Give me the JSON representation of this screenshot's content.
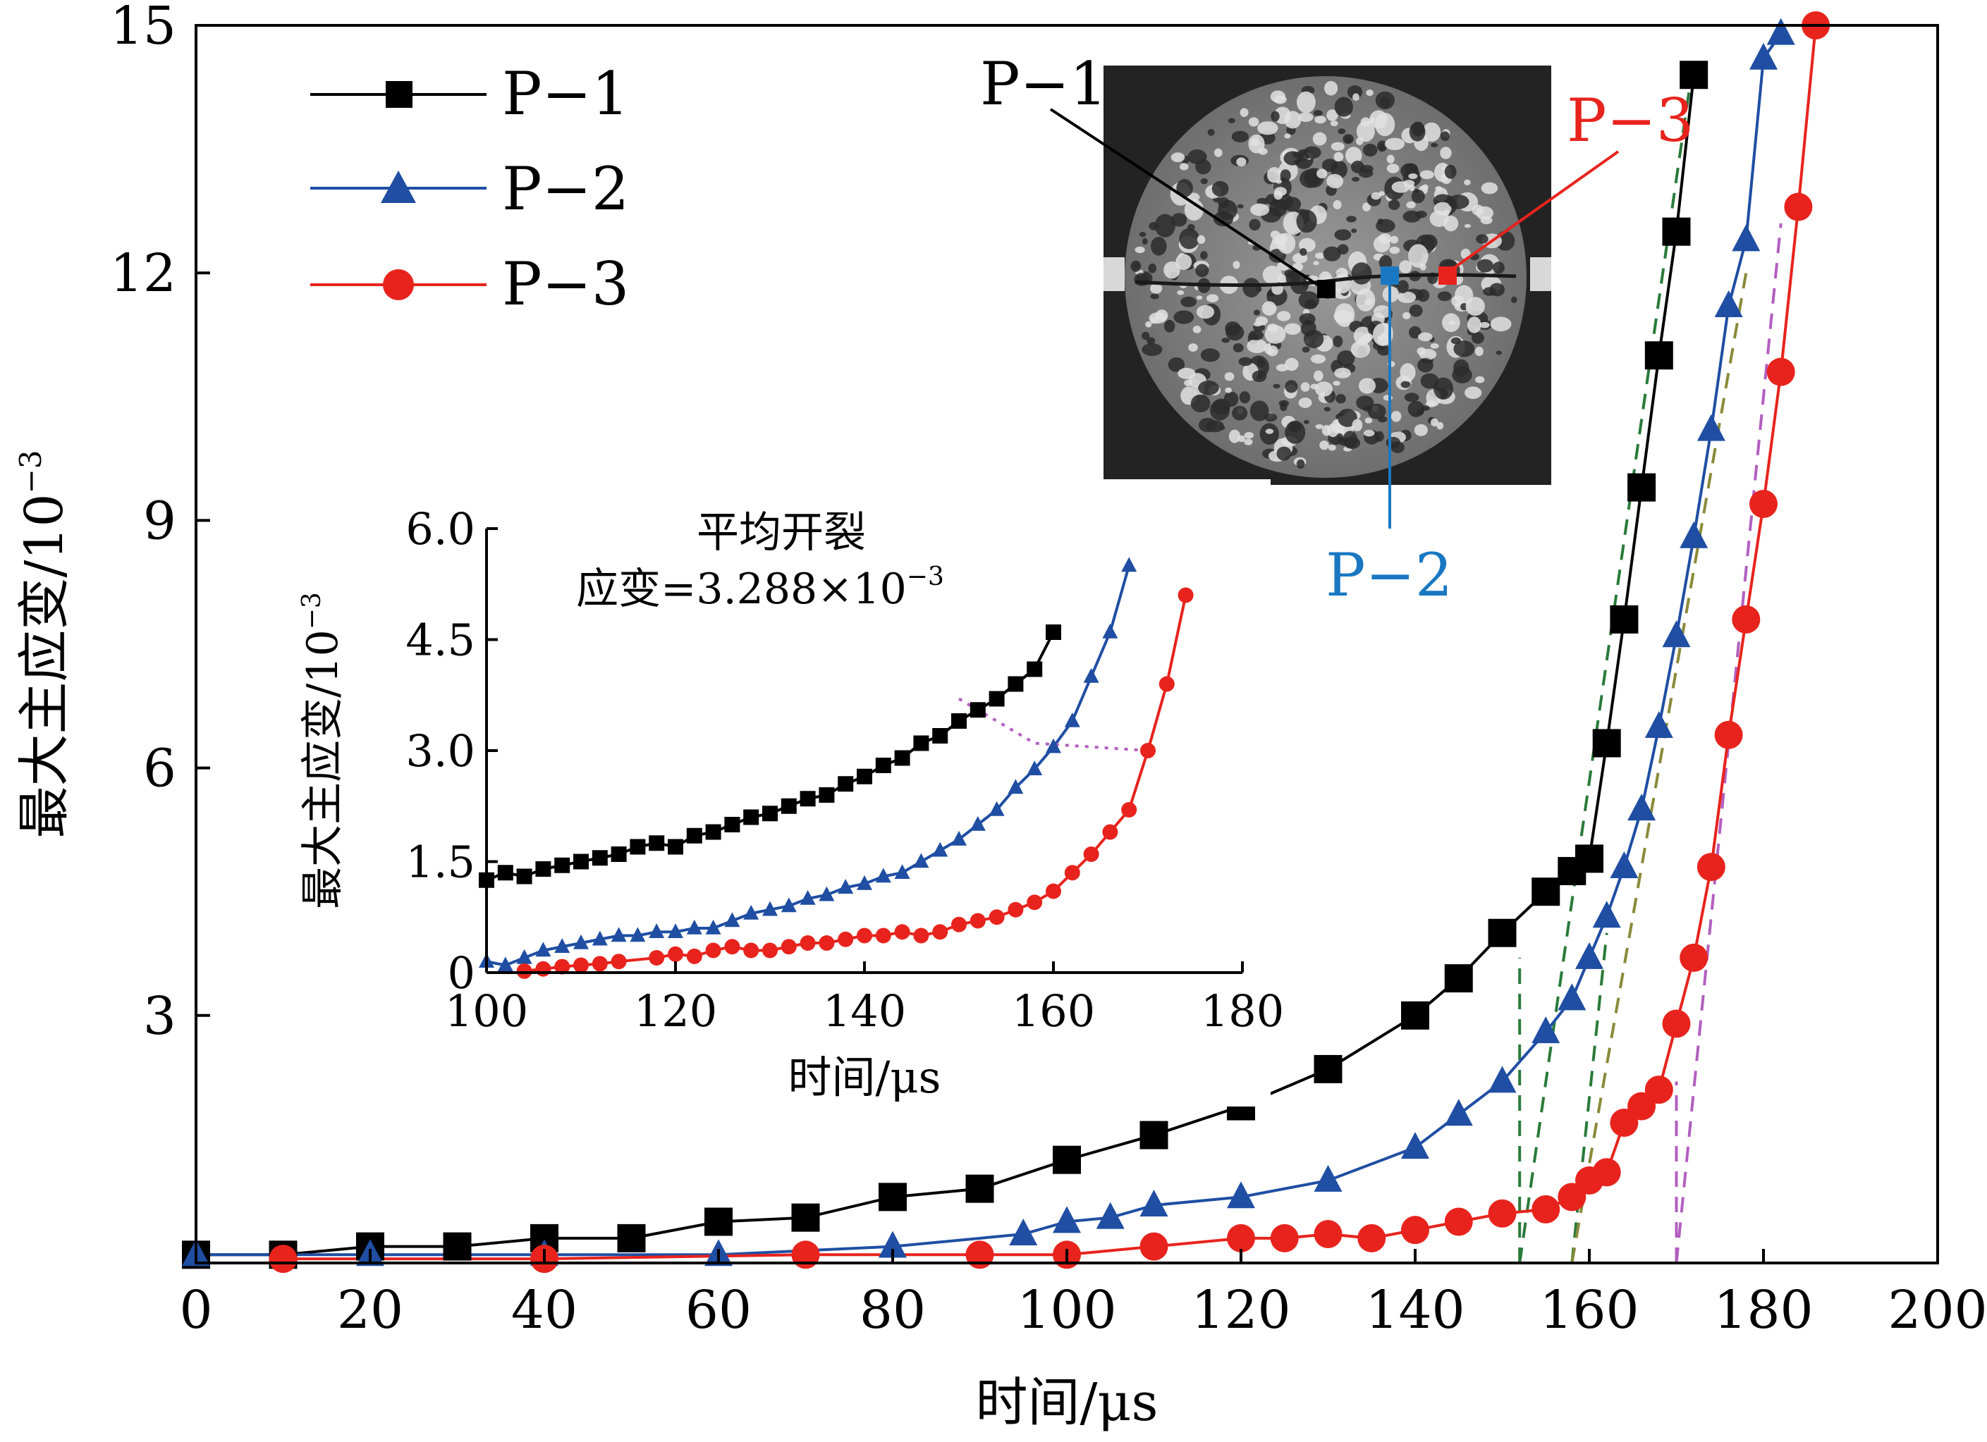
{
  "chart_data": [
    {
      "type": "scatter",
      "xlabel": "时间/μs",
      "ylabel": "最大主应变/10",
      "ylabel_exponent": "−3",
      "xlim": [
        0,
        200
      ],
      "ylim": [
        0,
        15
      ],
      "xticks": [
        0,
        20,
        40,
        60,
        80,
        100,
        120,
        140,
        160,
        180,
        200
      ],
      "yticks": [
        3,
        6,
        9,
        12,
        15
      ],
      "legend": {
        "position": "top-left",
        "entries": [
          "P−1",
          "P−2",
          "P−3"
        ]
      },
      "series": [
        {
          "name": "P−1",
          "marker": "square",
          "color": "#000000",
          "x": [
            0,
            10,
            20,
            30,
            40,
            50,
            60,
            70,
            80,
            90,
            100,
            110,
            120,
            130,
            140,
            145,
            150,
            155,
            158,
            160,
            162,
            164,
            166,
            168,
            170,
            172
          ],
          "y": [
            0.1,
            0.1,
            0.2,
            0.2,
            0.3,
            0.3,
            0.5,
            0.55,
            0.8,
            0.9,
            1.25,
            1.55,
            1.9,
            2.35,
            3.0,
            3.45,
            4.0,
            4.5,
            4.75,
            4.9,
            6.3,
            7.8,
            9.4,
            11.0,
            12.5,
            14.4
          ]
        },
        {
          "name": "P−2",
          "marker": "triangle",
          "color": "#1f4ea3",
          "x": [
            0,
            20,
            40,
            60,
            80,
            95,
            100,
            105,
            110,
            120,
            130,
            140,
            145,
            150,
            155,
            158,
            160,
            162,
            164,
            166,
            168,
            170,
            172,
            174,
            176,
            178,
            180,
            182
          ],
          "y": [
            0.1,
            0.1,
            0.1,
            0.1,
            0.2,
            0.35,
            0.5,
            0.55,
            0.7,
            0.8,
            1.0,
            1.4,
            1.8,
            2.2,
            2.8,
            3.2,
            3.7,
            4.2,
            4.8,
            5.5,
            6.5,
            7.6,
            8.8,
            10.1,
            11.6,
            12.4,
            14.6,
            14.9
          ]
        },
        {
          "name": "P−3",
          "marker": "circle",
          "color": "#e8231d",
          "x": [
            10,
            40,
            70,
            90,
            100,
            110,
            120,
            125,
            130,
            135,
            140,
            145,
            150,
            155,
            158,
            160,
            162,
            164,
            166,
            168,
            170,
            172,
            174,
            176,
            178,
            180,
            182,
            184,
            186
          ],
          "y": [
            0.05,
            0.05,
            0.1,
            0.1,
            0.1,
            0.2,
            0.3,
            0.3,
            0.35,
            0.3,
            0.4,
            0.5,
            0.6,
            0.65,
            0.8,
            1.0,
            1.1,
            1.7,
            1.9,
            2.1,
            2.9,
            3.7,
            4.8,
            6.4,
            7.8,
            9.2,
            10.8,
            12.8,
            15.0
          ]
        }
      ],
      "dashed_tangent_lines": [
        {
          "color": "#2a7a3a",
          "x1": 152,
          "y1": 0,
          "x2": 152,
          "y2": 3.7
        },
        {
          "color": "#2a7a3a",
          "x1": 152,
          "y1": 0,
          "x2": 172,
          "y2": 14.6
        },
        {
          "color": "#2a7a3a",
          "x1": 158,
          "y1": 0,
          "x2": 162,
          "y2": 4.0
        },
        {
          "color": "#8a8a3a",
          "x1": 158,
          "y1": 0,
          "x2": 178,
          "y2": 12.0
        },
        {
          "color": "#b25fbf",
          "x1": 170,
          "y1": 0,
          "x2": 170,
          "y2": 2.2
        },
        {
          "color": "#b25fbf",
          "x1": 170,
          "y1": 0,
          "x2": 182,
          "y2": 12.6
        }
      ]
    },
    {
      "type": "scatter",
      "inset": true,
      "title_lines": [
        "平均开裂",
        "应变=3.288×10"
      ],
      "title_exponent": "−3",
      "xlabel": "时间/μs",
      "ylabel": "最大主应变/10",
      "ylabel_exponent": "−3",
      "xlim": [
        100,
        180
      ],
      "ylim": [
        0,
        6.0
      ],
      "xticks": [
        100,
        120,
        140,
        160,
        180
      ],
      "yticks": [
        0,
        1.5,
        3.0,
        4.5,
        6.0
      ],
      "ytick_labels": [
        "0",
        "1.5",
        "3.0",
        "4.5",
        "6.0"
      ],
      "series": [
        {
          "name": "P−1",
          "marker": "square",
          "color": "#000000",
          "x": [
            100,
            102,
            104,
            106,
            108,
            110,
            112,
            114,
            116,
            118,
            120,
            122,
            124,
            126,
            128,
            130,
            132,
            134,
            136,
            138,
            140,
            142,
            144,
            146,
            148,
            150,
            152,
            154,
            156,
            158,
            160
          ],
          "y": [
            1.25,
            1.35,
            1.3,
            1.4,
            1.45,
            1.5,
            1.55,
            1.6,
            1.7,
            1.75,
            1.7,
            1.85,
            1.9,
            2.0,
            2.1,
            2.15,
            2.25,
            2.35,
            2.4,
            2.55,
            2.65,
            2.8,
            2.9,
            3.1,
            3.2,
            3.4,
            3.55,
            3.7,
            3.9,
            4.1,
            4.6
          ]
        },
        {
          "name": "P−2",
          "marker": "triangle",
          "color": "#1f4ea3",
          "x": [
            100,
            102,
            104,
            106,
            108,
            110,
            112,
            114,
            116,
            118,
            120,
            122,
            124,
            126,
            128,
            130,
            132,
            134,
            136,
            138,
            140,
            142,
            144,
            146,
            148,
            150,
            152,
            154,
            156,
            158,
            160,
            162,
            164,
            166,
            168
          ],
          "y": [
            0.15,
            0.1,
            0.2,
            0.3,
            0.35,
            0.4,
            0.45,
            0.5,
            0.5,
            0.55,
            0.55,
            0.6,
            0.6,
            0.7,
            0.8,
            0.85,
            0.9,
            1.0,
            1.05,
            1.15,
            1.2,
            1.3,
            1.35,
            1.5,
            1.65,
            1.8,
            2.0,
            2.2,
            2.5,
            2.75,
            3.05,
            3.4,
            4.0,
            4.6,
            5.5
          ]
        },
        {
          "name": "P−3",
          "marker": "circle",
          "color": "#e8231d",
          "x": [
            104,
            106,
            108,
            110,
            112,
            114,
            118,
            120,
            122,
            124,
            126,
            128,
            130,
            132,
            134,
            136,
            138,
            140,
            142,
            144,
            146,
            148,
            150,
            152,
            154,
            156,
            158,
            160,
            162,
            164,
            166,
            168,
            170,
            172,
            174
          ],
          "y": [
            0.02,
            0.05,
            0.08,
            0.1,
            0.12,
            0.15,
            0.2,
            0.25,
            0.22,
            0.3,
            0.35,
            0.3,
            0.3,
            0.35,
            0.4,
            0.4,
            0.45,
            0.5,
            0.5,
            0.55,
            0.5,
            0.55,
            0.65,
            0.7,
            0.75,
            0.85,
            0.95,
            1.1,
            1.35,
            1.6,
            1.9,
            2.2,
            3.0,
            3.9,
            5.1
          ]
        }
      ],
      "dotted_connector": {
        "color": "#b25fbf",
        "points": [
          [
            150,
            3.7
          ],
          [
            158,
            3.1
          ],
          [
            170,
            3.0
          ]
        ]
      }
    }
  ],
  "photo_inset": {
    "labels": [
      {
        "text": "P−1",
        "color": "#000000"
      },
      {
        "text": "P−2",
        "color": "#1a78c2"
      },
      {
        "text": "P−3",
        "color": "#e8231d"
      }
    ]
  }
}
